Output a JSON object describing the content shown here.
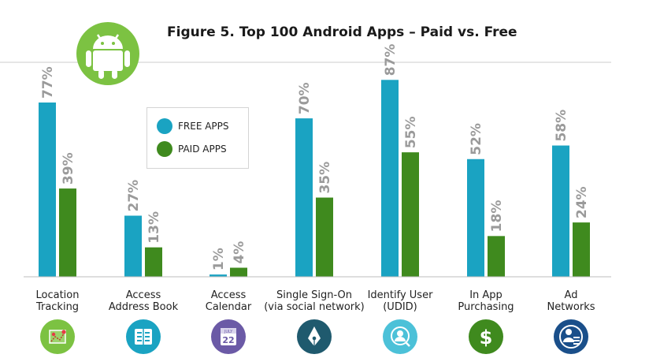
{
  "title": "Figure 5. Top 100 Android Apps – Paid vs. Free",
  "colors": {
    "free": "#1aa3c2",
    "paid": "#3f8a1e",
    "value_label": "#9a9a9a",
    "android_badge": "#7cc242"
  },
  "legend": [
    {
      "label": "FREE APPS",
      "color": "#1aa3c2"
    },
    {
      "label": "PAID APPS",
      "color": "#3f8a1e"
    }
  ],
  "chart_data": {
    "type": "bar",
    "title": "Figure 5. Top 100 Android Apps – Paid vs. Free",
    "categories": [
      "Location Tracking",
      "Access Address Book",
      "Access Calendar",
      "Single Sign-On (via social network)",
      "Identify User (UDID)",
      "In App Purchasing",
      "Ad Networks"
    ],
    "category_lines": [
      [
        "Location",
        "Tracking"
      ],
      [
        "Access",
        "Address Book"
      ],
      [
        "Access",
        "Calendar"
      ],
      [
        "Single Sign-On",
        "(via social network)"
      ],
      [
        "Identify User",
        "(UDID)"
      ],
      [
        "In App",
        "Purchasing"
      ],
      [
        "Ad",
        "Networks"
      ]
    ],
    "series": [
      {
        "name": "FREE APPS",
        "values": [
          77,
          27,
          1,
          70,
          87,
          52,
          58
        ],
        "labels": [
          "77%",
          "27%",
          "1%",
          "70%",
          "87%",
          "52%",
          "58%"
        ]
      },
      {
        "name": "PAID APPS",
        "values": [
          39,
          13,
          4,
          35,
          55,
          18,
          24
        ],
        "labels": [
          "39%",
          "13%",
          "4%",
          "35%",
          "55%",
          "18%",
          "24%"
        ]
      }
    ],
    "ylim": [
      0,
      100
    ],
    "grid": false,
    "legend_position": "upper-left, inside plot",
    "icons": [
      {
        "name": "map-pin-icon",
        "color": "#7cc242"
      },
      {
        "name": "address-book-icon",
        "color": "#1aa3c2"
      },
      {
        "name": "calendar-icon",
        "color": "#6b5aa6",
        "month": "JULY",
        "day": "22"
      },
      {
        "name": "pen-nib-icon",
        "color": "#1f5a6e"
      },
      {
        "name": "user-fingerprint-icon",
        "color": "#4cc1d8"
      },
      {
        "name": "dollar-icon",
        "color": "#3f8a1e"
      },
      {
        "name": "user-info-icon",
        "color": "#1a4f8a"
      }
    ]
  }
}
